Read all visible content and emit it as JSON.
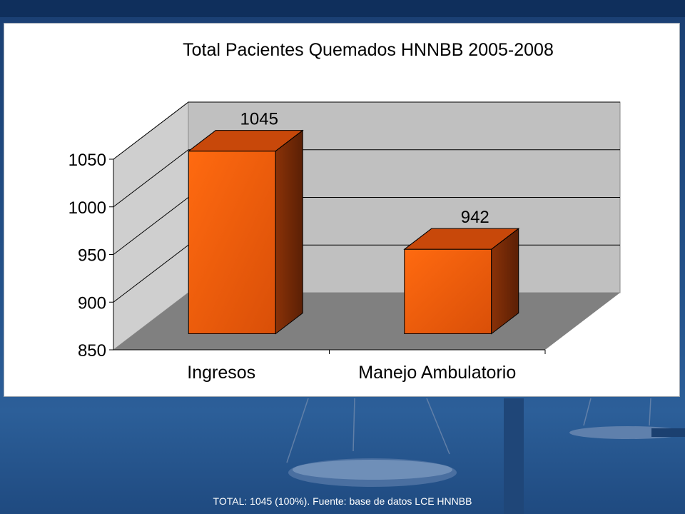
{
  "slide": {
    "footer_text": "TOTAL: 1045 (100%). Fuente: base de datos LCE HNNBB"
  },
  "colors": {
    "bar_front": "#ff6a10",
    "bar_top": "#c8480a",
    "bar_side": "#5a1f05",
    "back_wall": "#c0c0c0",
    "side_wall": "#cfcfcf",
    "floor": "#808080"
  },
  "chart_data": {
    "type": "bar",
    "title": "Total Pacientes Quemados HNNBB 2005-2008",
    "categories": [
      "Ingresos",
      "Manejo Ambulatorio"
    ],
    "values": [
      1045,
      942
    ],
    "data_labels": [
      "1045",
      "942"
    ],
    "ylim": [
      850,
      1050
    ],
    "yticks": [
      "850",
      "900",
      "950",
      "1000",
      "1050"
    ],
    "xlabel": "",
    "ylabel": "",
    "grid": true,
    "legend": "none",
    "style": "3d"
  }
}
